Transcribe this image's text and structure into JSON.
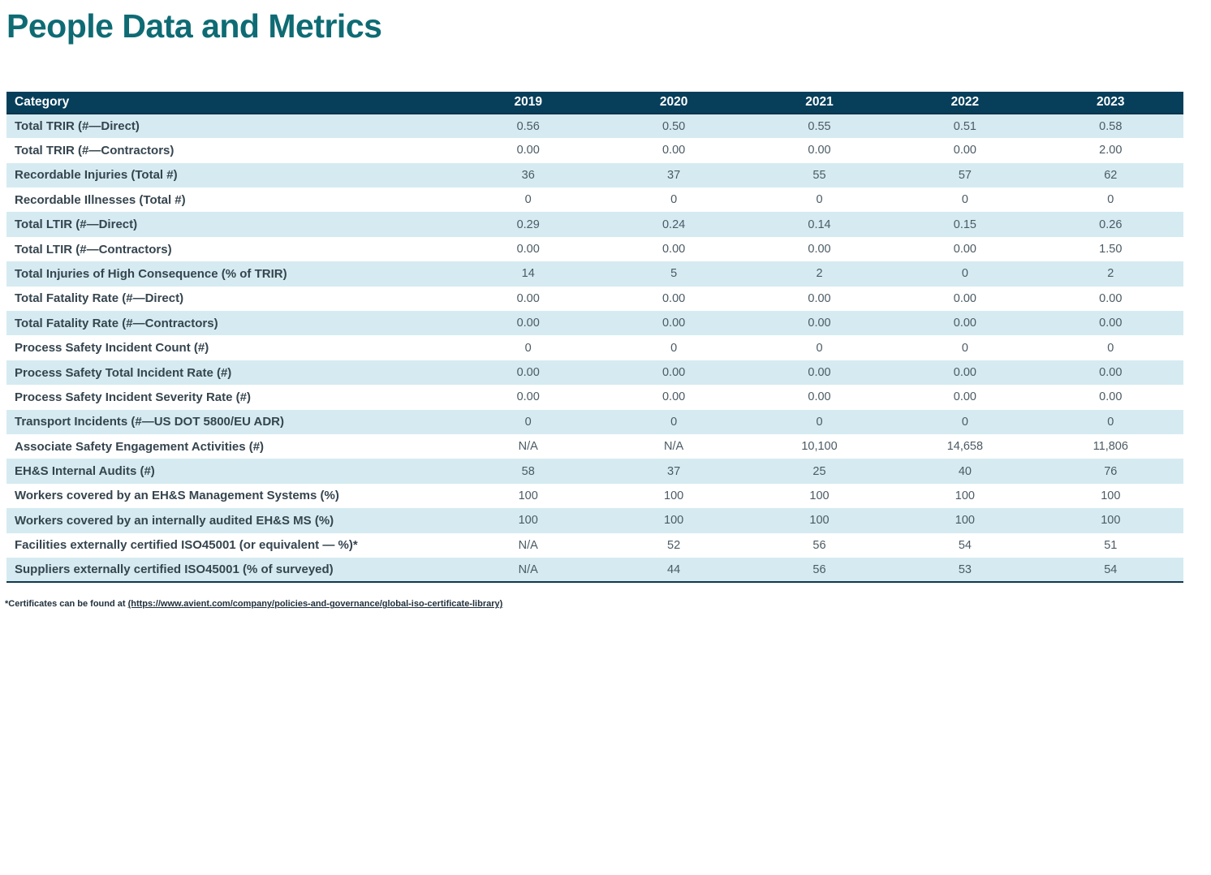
{
  "title": "People Data and Metrics",
  "colors": {
    "title_teal": "#0E6B74",
    "header_bg": "#073F5B",
    "header_edge": "#0A334A",
    "row_alt": "#D5EBF1",
    "table_border": "#12384C",
    "label_text": "#35454F",
    "value_text": "#4A5A64",
    "footnote_text": "#22313D"
  },
  "table": {
    "columns": [
      "Category",
      "2019",
      "2020",
      "2021",
      "2022",
      "2023"
    ],
    "rows": [
      {
        "label": "Total TRIR (#—Direct)",
        "values": [
          "0.56",
          "0.50",
          "0.55",
          "0.51",
          "0.58"
        ]
      },
      {
        "label": "Total TRIR (#—Contractors)",
        "values": [
          "0.00",
          "0.00",
          "0.00",
          "0.00",
          "2.00"
        ]
      },
      {
        "label": "Recordable Injuries (Total #)",
        "values": [
          "36",
          "37",
          "55",
          "57",
          "62"
        ]
      },
      {
        "label": "Recordable Illnesses (Total #)",
        "values": [
          "0",
          "0",
          "0",
          "0",
          "0"
        ]
      },
      {
        "label": "Total LTIR (#—Direct)",
        "values": [
          "0.29",
          "0.24",
          "0.14",
          "0.15",
          "0.26"
        ]
      },
      {
        "label": "Total LTIR (#—Contractors)",
        "values": [
          "0.00",
          "0.00",
          "0.00",
          "0.00",
          "1.50"
        ]
      },
      {
        "label": "Total Injuries of High Consequence (% of TRIR)",
        "values": [
          "14",
          "5",
          "2",
          "0",
          "2"
        ]
      },
      {
        "label": "Total Fatality Rate (#—Direct)",
        "values": [
          "0.00",
          "0.00",
          "0.00",
          "0.00",
          "0.00"
        ]
      },
      {
        "label": "Total Fatality Rate (#—Contractors)",
        "values": [
          "0.00",
          "0.00",
          "0.00",
          "0.00",
          "0.00"
        ]
      },
      {
        "label": "Process Safety Incident Count (#)",
        "values": [
          "0",
          "0",
          "0",
          "0",
          "0"
        ]
      },
      {
        "label": "Process Safety Total Incident Rate (#)",
        "values": [
          "0.00",
          "0.00",
          "0.00",
          "0.00",
          "0.00"
        ]
      },
      {
        "label": "Process Safety Incident Severity Rate (#)",
        "values": [
          "0.00",
          "0.00",
          "0.00",
          "0.00",
          "0.00"
        ]
      },
      {
        "label": "Transport Incidents (#—US DOT 5800/EU ADR)",
        "values": [
          "0",
          "0",
          "0",
          "0",
          "0"
        ]
      },
      {
        "label": "Associate Safety Engagement Activities (#)",
        "values": [
          "N/A",
          "N/A",
          "10,100",
          "14,658",
          "11,806"
        ]
      },
      {
        "label": "EH&S Internal Audits (#)",
        "values": [
          "58",
          "37",
          "25",
          "40",
          "76"
        ]
      },
      {
        "label": "Workers covered by an EH&S Management Systems (%)",
        "values": [
          "100",
          "100",
          "100",
          "100",
          "100"
        ]
      },
      {
        "label": "Workers covered by an internally audited EH&S MS (%)",
        "values": [
          "100",
          "100",
          "100",
          "100",
          "100"
        ]
      },
      {
        "label": "Facilities externally certified ISO45001 (or equivalent — %)*",
        "values": [
          "N/A",
          "52",
          "56",
          "54",
          "51"
        ]
      },
      {
        "label": "Suppliers externally certified ISO45001 (% of surveyed)",
        "values": [
          "N/A",
          "44",
          "56",
          "53",
          "54"
        ]
      }
    ]
  },
  "footnote": {
    "prefix": "*Certificates can be found at ",
    "link_text": "(https://www.avient.com/company/policies-and-governance/global-iso-certificate-library)"
  }
}
